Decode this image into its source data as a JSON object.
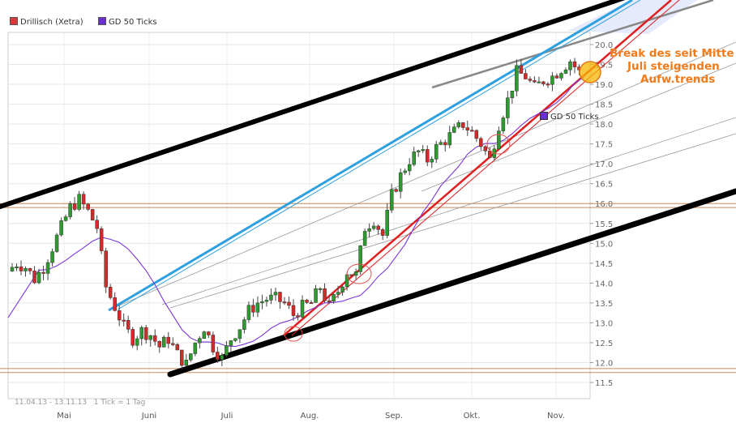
{
  "legend": {
    "price_series": "Drillisch (Xetra)",
    "ma_series": "GD 50 Ticks",
    "price_color": "#d63a3a",
    "ma_color": "#6a2fcf"
  },
  "footer": {
    "range": "11.04.13 - 13.11.13",
    "tick_info": "1 Tick = 1 Tag"
  },
  "annotation": [
    "Break des seit Mitte",
    "Juli steigenden",
    "Aufw.trends"
  ],
  "colors": {
    "up_candle": "#2e9b2e",
    "down_candle": "#d62a2a",
    "ma_line": "#7a36d8",
    "blue_channel": "#2ea0e0",
    "red_trend": "#e02020",
    "black_channel": "#000000",
    "gray_trend": "#888888",
    "horizontal_lines": "#c88a5a",
    "annotation": "#f07b1a"
  },
  "chart_data": {
    "type": "candlestick",
    "x_labels": [
      "Mai",
      "Juni",
      "Juli",
      "Aug.",
      "Sep.",
      "Okt.",
      "Nov."
    ],
    "y_ticks": [
      11.5,
      12.0,
      12.5,
      13.0,
      13.5,
      14.0,
      14.5,
      15.0,
      15.5,
      16.0,
      16.5,
      17.0,
      17.5,
      18.0,
      18.5,
      19.0,
      19.5,
      20.0
    ],
    "ylim": [
      11.3,
      20.2
    ],
    "grid": true,
    "horizontal_levels": [
      15.9,
      16.0,
      11.75,
      11.85
    ],
    "close_path": [
      14.3,
      14.5,
      14.4,
      14.1,
      14.4,
      14.9,
      15.4,
      15.9,
      16.1,
      15.8,
      15.4,
      13.9,
      13.4,
      12.9,
      12.6,
      12.8,
      12.7,
      12.4,
      12.6,
      12.2,
      11.95,
      12.5,
      12.9,
      12.4,
      12.1,
      12.6,
      12.9,
      13.3,
      13.5,
      13.6,
      13.6,
      13.5,
      13.2,
      13.4,
      13.5,
      13.9,
      13.4,
      13.8,
      14.3,
      14.2,
      15.4,
      15.6,
      15.2,
      16.2,
      16.7,
      17.1,
      17.3,
      17.1,
      17.4,
      17.6,
      17.8,
      18.0,
      17.8,
      17.5,
      17.1,
      18.0,
      18.6,
      19.3,
      19.2,
      18.9,
      19.1,
      19.2,
      19.4,
      19.6,
      19.3
    ]
  }
}
